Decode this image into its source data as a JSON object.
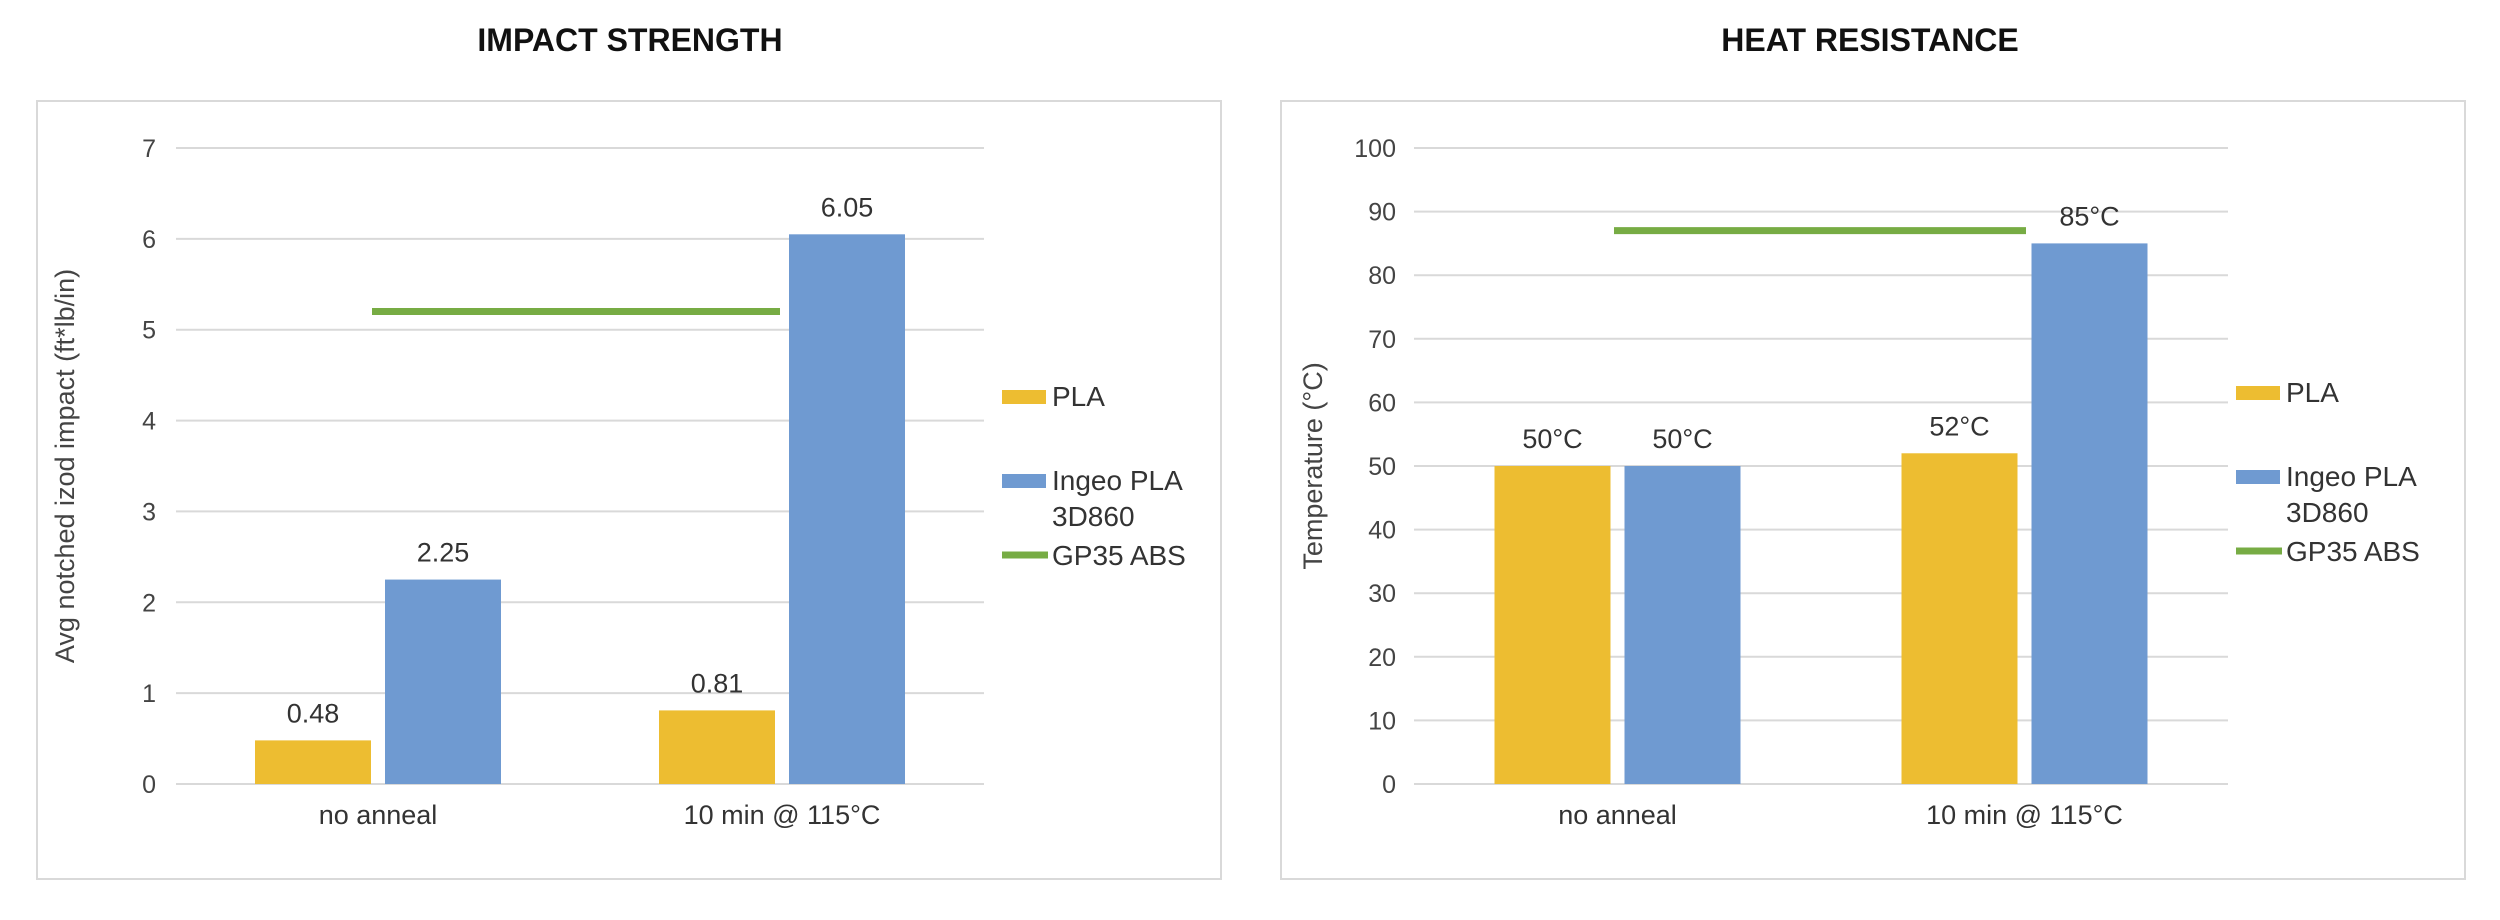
{
  "colors": {
    "pla": "#EDBD31",
    "ingeo": "#6F9AD1",
    "abs": "#77AC44",
    "grid": "#d9d9d9"
  },
  "chart_data": [
    {
      "type": "bar",
      "title": "IMPACT STRENGTH",
      "ylabel": "Avg notched izod impact (ft*lb/in)",
      "xlabel": "",
      "ylim": [
        0,
        7
      ],
      "yticks": [
        "0",
        "1",
        "2",
        "3",
        "4",
        "5",
        "6",
        "7"
      ],
      "categories": [
        "no anneal",
        "10 min @ 115°C"
      ],
      "series": [
        {
          "name": "PLA",
          "values": [
            0.48,
            0.81
          ],
          "labels": [
            "0.48",
            "0.81"
          ]
        },
        {
          "name": "Ingeo PLA 3D860",
          "values": [
            2.25,
            6.05
          ],
          "labels": [
            "2.25",
            "6.05"
          ]
        }
      ],
      "reference_line": {
        "name": "GP35 ABS",
        "value": 5.2
      },
      "legend": {
        "position": "right",
        "entries": [
          "PLA",
          "Ingeo PLA",
          "3D860",
          "GP35 ABS"
        ]
      },
      "grid": true
    },
    {
      "type": "bar",
      "title": "HEAT RESISTANCE",
      "ylabel": "Temperature (°C)",
      "xlabel": "",
      "ylim": [
        0,
        100
      ],
      "yticks": [
        "0",
        "10",
        "20",
        "30",
        "40",
        "50",
        "60",
        "70",
        "80",
        "90",
        "100"
      ],
      "categories": [
        "no anneal",
        "10 min @ 115°C"
      ],
      "series": [
        {
          "name": "PLA",
          "values": [
            50,
            52
          ],
          "labels": [
            "50°C",
            "52°C"
          ]
        },
        {
          "name": "Ingeo PLA 3D860",
          "values": [
            50,
            85
          ],
          "labels": [
            "50°C",
            "85°C"
          ]
        }
      ],
      "reference_line": {
        "name": "GP35 ABS",
        "value": 87
      },
      "legend": {
        "position": "right",
        "entries": [
          "PLA",
          "Ingeo PLA",
          "3D860",
          "GP35 ABS"
        ]
      },
      "grid": true
    }
  ]
}
